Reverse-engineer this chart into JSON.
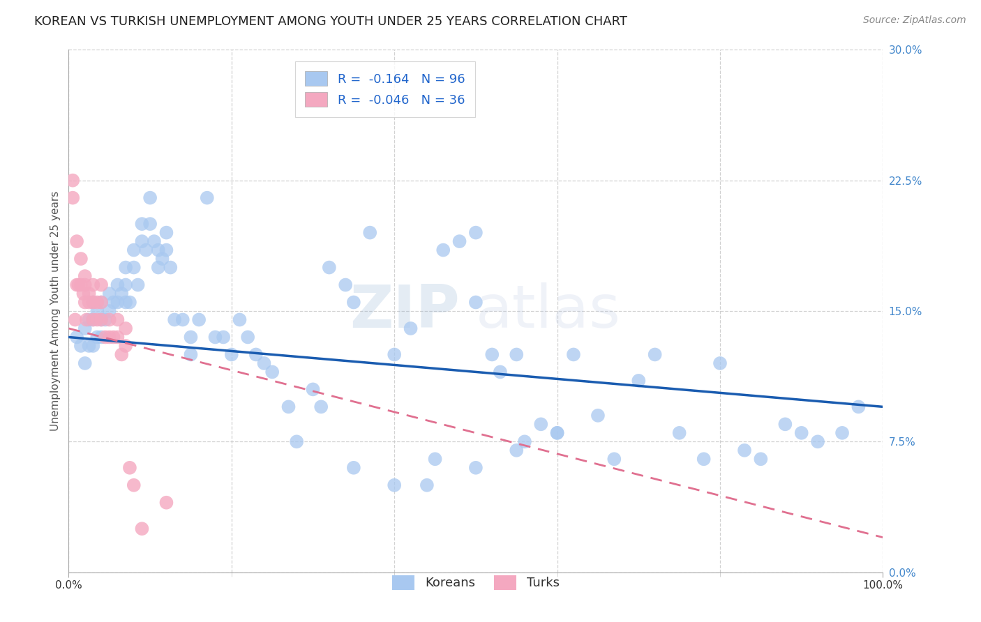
{
  "title": "KOREAN VS TURKISH UNEMPLOYMENT AMONG YOUTH UNDER 25 YEARS CORRELATION CHART",
  "source": "Source: ZipAtlas.com",
  "ylabel": "Unemployment Among Youth under 25 years",
  "ytick_labels": [
    "0.0%",
    "7.5%",
    "15.0%",
    "22.5%",
    "30.0%"
  ],
  "ytick_values": [
    0.0,
    0.075,
    0.15,
    0.225,
    0.3
  ],
  "xlim": [
    0.0,
    1.0
  ],
  "ylim": [
    0.0,
    0.3
  ],
  "korean_color": "#A8C8F0",
  "turkish_color": "#F4A8C0",
  "korean_line_color": "#1A5CB0",
  "turkish_line_color": "#E07090",
  "legend_korean_R": "-0.164",
  "legend_korean_N": "96",
  "legend_turkish_R": "-0.046",
  "legend_turkish_N": "36",
  "title_fontsize": 13,
  "axis_label_fontsize": 11,
  "tick_fontsize": 11,
  "source_fontsize": 10,
  "korean_x": [
    0.01,
    0.015,
    0.02,
    0.02,
    0.025,
    0.025,
    0.03,
    0.03,
    0.03,
    0.035,
    0.035,
    0.04,
    0.04,
    0.04,
    0.045,
    0.05,
    0.05,
    0.055,
    0.06,
    0.06,
    0.065,
    0.07,
    0.07,
    0.07,
    0.075,
    0.08,
    0.08,
    0.085,
    0.09,
    0.09,
    0.095,
    0.1,
    0.1,
    0.105,
    0.11,
    0.11,
    0.115,
    0.12,
    0.12,
    0.125,
    0.13,
    0.14,
    0.15,
    0.15,
    0.16,
    0.17,
    0.18,
    0.19,
    0.2,
    0.21,
    0.22,
    0.23,
    0.24,
    0.25,
    0.27,
    0.28,
    0.3,
    0.31,
    0.32,
    0.34,
    0.35,
    0.37,
    0.4,
    0.42,
    0.44,
    0.46,
    0.48,
    0.5,
    0.5,
    0.52,
    0.53,
    0.55,
    0.56,
    0.58,
    0.6,
    0.62,
    0.65,
    0.67,
    0.7,
    0.72,
    0.75,
    0.78,
    0.8,
    0.83,
    0.85,
    0.88,
    0.9,
    0.92,
    0.95,
    0.97,
    0.35,
    0.4,
    0.45,
    0.5,
    0.55,
    0.6
  ],
  "korean_y": [
    0.135,
    0.13,
    0.14,
    0.12,
    0.145,
    0.13,
    0.155,
    0.145,
    0.13,
    0.15,
    0.135,
    0.155,
    0.145,
    0.135,
    0.145,
    0.16,
    0.15,
    0.155,
    0.165,
    0.155,
    0.16,
    0.175,
    0.165,
    0.155,
    0.155,
    0.185,
    0.175,
    0.165,
    0.2,
    0.19,
    0.185,
    0.215,
    0.2,
    0.19,
    0.185,
    0.175,
    0.18,
    0.195,
    0.185,
    0.175,
    0.145,
    0.145,
    0.135,
    0.125,
    0.145,
    0.215,
    0.135,
    0.135,
    0.125,
    0.145,
    0.135,
    0.125,
    0.12,
    0.115,
    0.095,
    0.075,
    0.105,
    0.095,
    0.175,
    0.165,
    0.155,
    0.195,
    0.125,
    0.14,
    0.05,
    0.185,
    0.19,
    0.195,
    0.155,
    0.125,
    0.115,
    0.125,
    0.075,
    0.085,
    0.08,
    0.125,
    0.09,
    0.065,
    0.11,
    0.125,
    0.08,
    0.065,
    0.12,
    0.07,
    0.065,
    0.085,
    0.08,
    0.075,
    0.08,
    0.095,
    0.06,
    0.05,
    0.065,
    0.06,
    0.07,
    0.08
  ],
  "turkish_x": [
    0.005,
    0.005,
    0.008,
    0.01,
    0.01,
    0.012,
    0.015,
    0.015,
    0.018,
    0.02,
    0.02,
    0.02,
    0.022,
    0.025,
    0.025,
    0.03,
    0.03,
    0.03,
    0.035,
    0.035,
    0.04,
    0.04,
    0.04,
    0.045,
    0.05,
    0.05,
    0.055,
    0.06,
    0.06,
    0.065,
    0.07,
    0.07,
    0.075,
    0.08,
    0.09,
    0.12
  ],
  "turkish_y": [
    0.225,
    0.215,
    0.145,
    0.19,
    0.165,
    0.165,
    0.18,
    0.165,
    0.16,
    0.17,
    0.165,
    0.155,
    0.145,
    0.16,
    0.155,
    0.165,
    0.155,
    0.145,
    0.155,
    0.145,
    0.165,
    0.155,
    0.145,
    0.135,
    0.145,
    0.135,
    0.135,
    0.145,
    0.135,
    0.125,
    0.14,
    0.13,
    0.06,
    0.05,
    0.025,
    0.04
  ]
}
